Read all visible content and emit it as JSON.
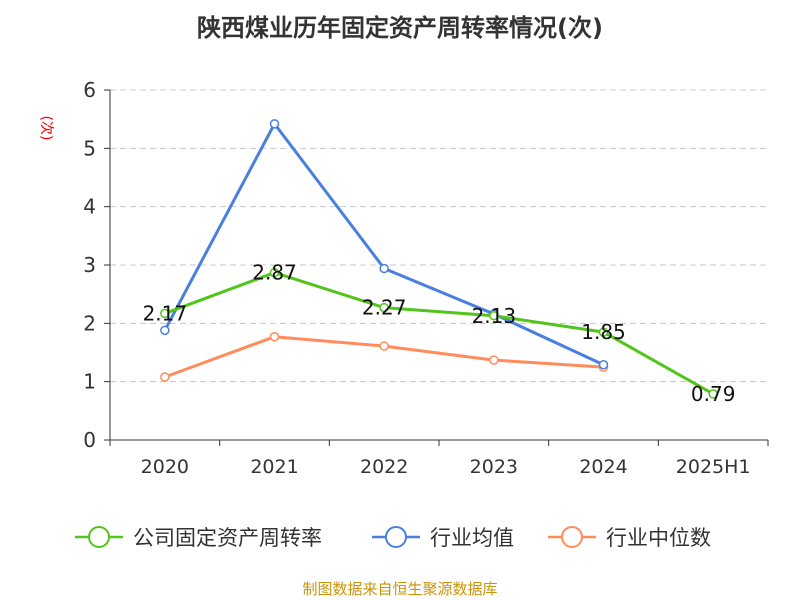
{
  "chart_data": {
    "type": "line",
    "title": "陕西煤业历年固定资产周转率情况(次)",
    "ylabel": "(次)",
    "categories": [
      "2020",
      "2021",
      "2022",
      "2023",
      "2024",
      "2025H1"
    ],
    "ylim": [
      0,
      6
    ],
    "yticks": [
      "0",
      "1",
      "2",
      "3",
      "4",
      "5",
      "6"
    ],
    "grid": true,
    "legend_position": "bottom",
    "series": [
      {
        "name": "公司固定资产周转率",
        "color": "#52c41a",
        "values": [
          2.17,
          2.87,
          2.27,
          2.13,
          1.85,
          0.79
        ],
        "labels": [
          "2.17",
          "2.87",
          "2.27",
          "2.13",
          "1.85",
          "0.79"
        ]
      },
      {
        "name": "行业均值",
        "color": "#4a7fe0",
        "values": [
          1.88,
          5.42,
          2.94,
          2.16,
          1.29,
          null
        ]
      },
      {
        "name": "行业中位数",
        "color": "#ff8c5a",
        "values": [
          1.08,
          1.77,
          1.61,
          1.37,
          1.25,
          null
        ]
      }
    ]
  },
  "footer": "制图数据来自恒生聚源数据库"
}
